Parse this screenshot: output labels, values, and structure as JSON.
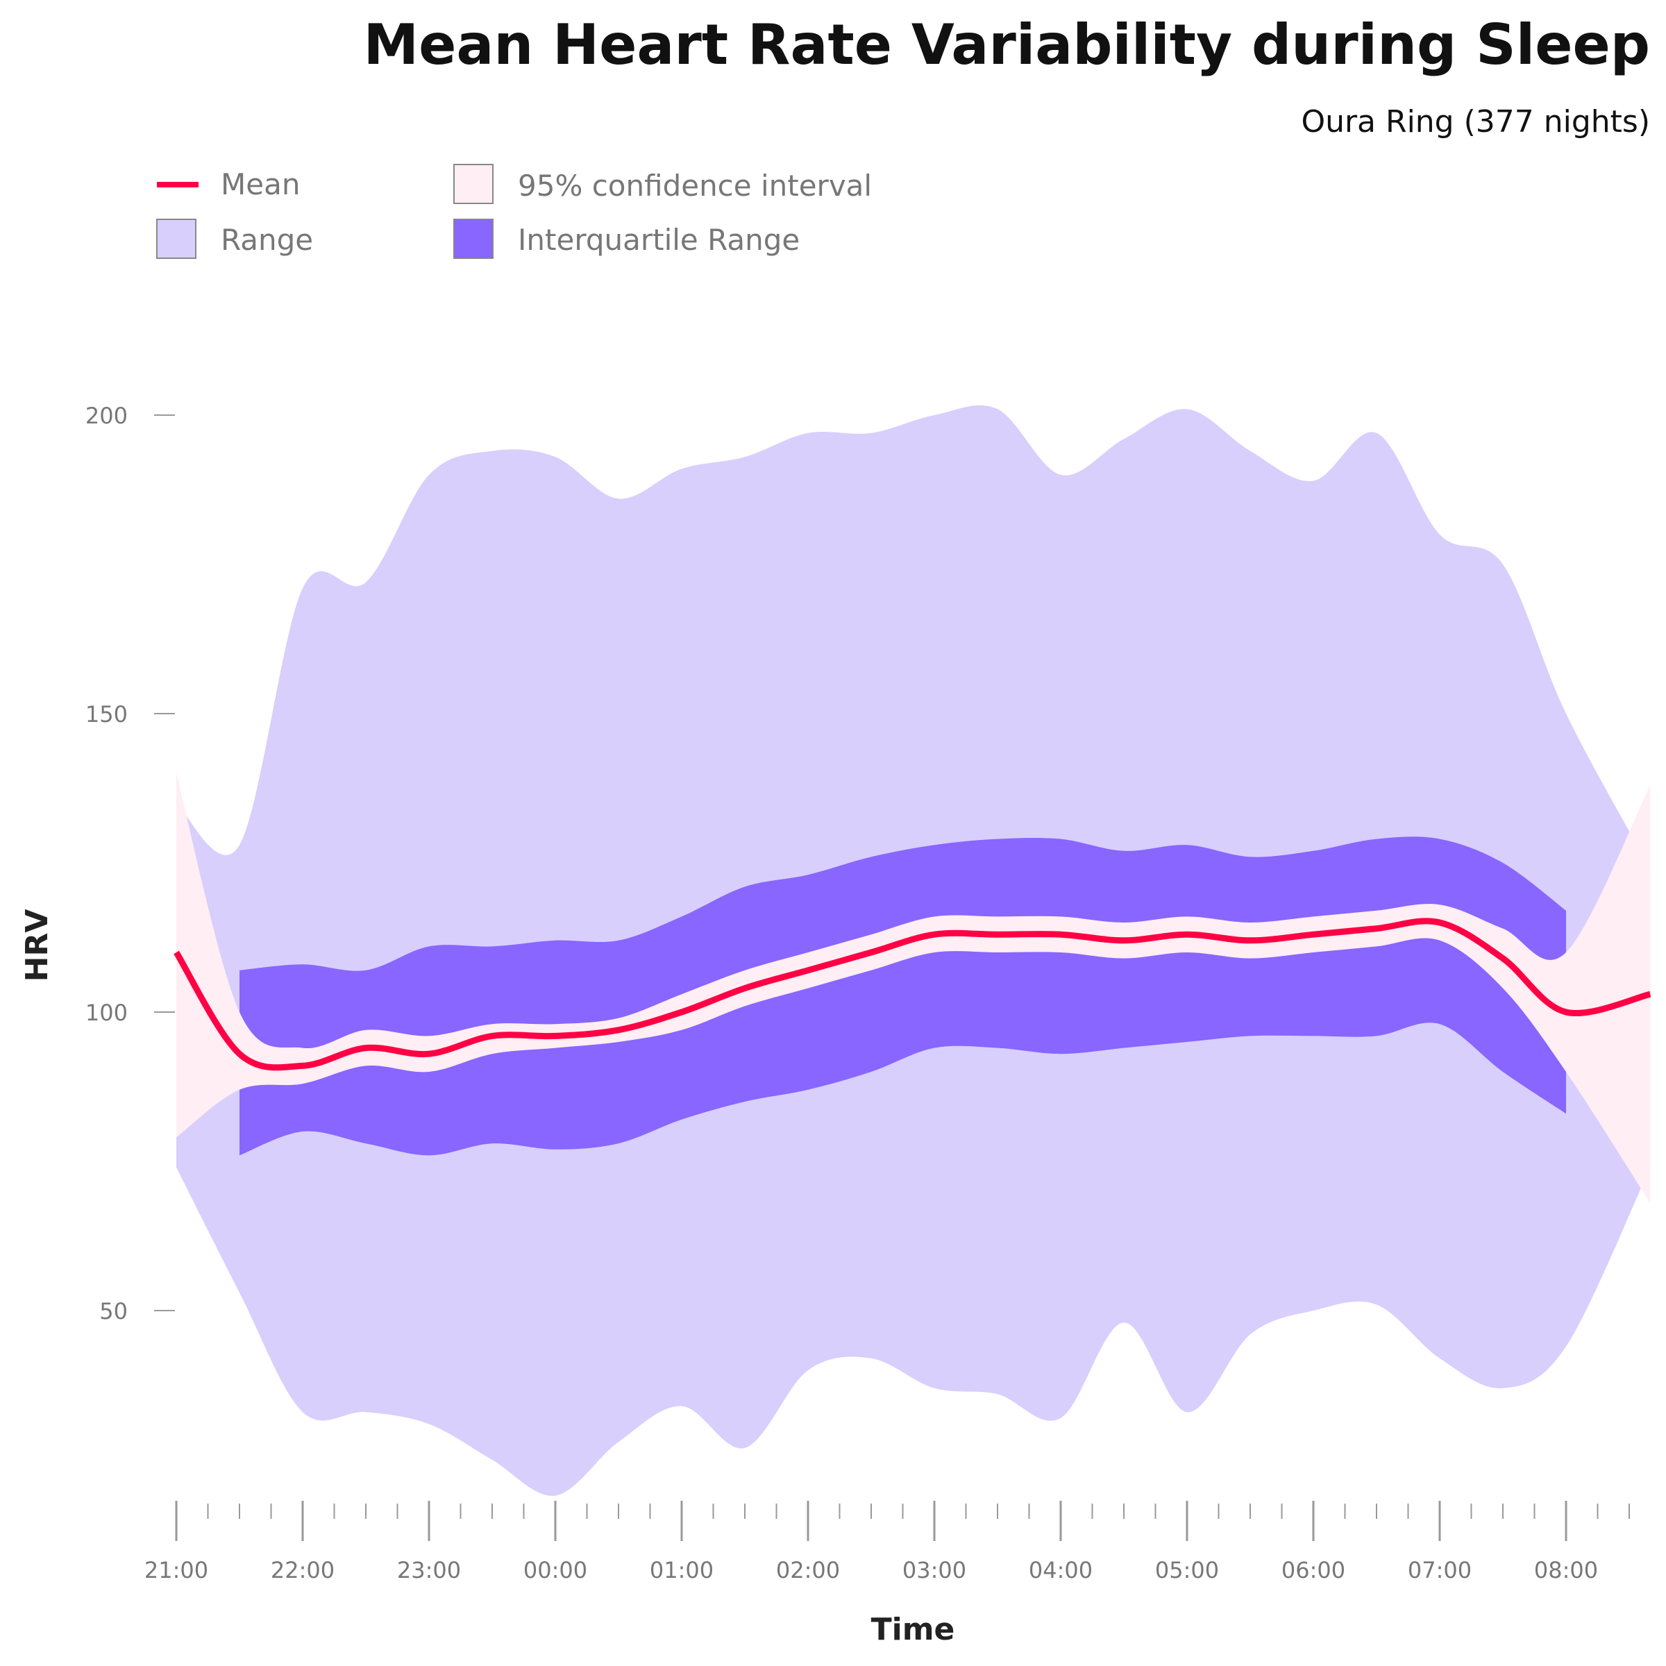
{
  "title": "Mean Heart Rate Variability during Sleep",
  "subtitle": "Oura Ring (377 nights)",
  "legend": [
    {
      "label": "Mean",
      "kind": "line",
      "color": "#ff0044"
    },
    {
      "label": "95% confidence interval",
      "kind": "box",
      "color": "#ffeef3"
    },
    {
      "label": "Range",
      "kind": "box",
      "color": "#d8cffd"
    },
    {
      "label": "Interquartile Range",
      "kind": "box",
      "color": "#8866ff"
    }
  ],
  "chart_data": {
    "type": "area",
    "title": "Mean Heart Rate Variability during Sleep",
    "subtitle": "Oura Ring (377 nights)",
    "xlabel": "Time",
    "ylabel": "HRV",
    "ylim": [
      20,
      202
    ],
    "yticks": [
      50,
      100,
      150,
      200
    ],
    "xticks": [
      "21:00",
      "22:00",
      "23:00",
      "00:00",
      "01:00",
      "02:00",
      "03:00",
      "04:00",
      "05:00",
      "06:00",
      "07:00",
      "08:00"
    ],
    "grid": false,
    "legend_position": "top-left",
    "x": [
      "21:00",
      "21:30",
      "22:00",
      "22:30",
      "23:00",
      "23:30",
      "00:00",
      "00:30",
      "01:00",
      "01:30",
      "02:00",
      "02:30",
      "03:00",
      "03:30",
      "04:00",
      "04:30",
      "05:00",
      "05:30",
      "06:00",
      "06:30",
      "07:00",
      "07:30",
      "08:00",
      "08:40"
    ],
    "series": [
      {
        "name": "Mean",
        "values": [
          110,
          93,
          91,
          94,
          93,
          96,
          96,
          97,
          100,
          104,
          107,
          110,
          113,
          113,
          113,
          112,
          113,
          112,
          113,
          114,
          115,
          109,
          100,
          103
        ]
      },
      {
        "name": "95% confidence interval",
        "lower": [
          79,
          87,
          88,
          91,
          90,
          93,
          94,
          95,
          97,
          101,
          104,
          107,
          110,
          110,
          110,
          109,
          110,
          109,
          110,
          111,
          112,
          104,
          90,
          68
        ],
        "upper": [
          140,
          100,
          94,
          97,
          96,
          98,
          98,
          99,
          103,
          107,
          110,
          113,
          116,
          116,
          116,
          115,
          116,
          115,
          116,
          117,
          118,
          114,
          110,
          138
        ]
      },
      {
        "name": "Interquartile Range",
        "lower": [
          null,
          76,
          80,
          78,
          76,
          78,
          77,
          78,
          82,
          85,
          87,
          90,
          94,
          94,
          93,
          94,
          95,
          96,
          96,
          96,
          98,
          90,
          83,
          null
        ],
        "upper": [
          null,
          107,
          108,
          107,
          111,
          111,
          112,
          112,
          116,
          121,
          123,
          126,
          128,
          129,
          129,
          127,
          128,
          126,
          127,
          129,
          129,
          125,
          117,
          null
        ]
      },
      {
        "name": "Range",
        "lower": [
          74,
          53,
          33,
          33,
          31,
          25,
          19,
          28,
          34,
          27,
          40,
          42,
          37,
          36,
          32,
          48,
          33,
          46,
          50,
          51,
          42,
          37,
          44,
          74
        ],
        "upper": [
          135,
          128,
          171,
          172,
          190,
          194,
          193,
          186,
          191,
          193,
          197,
          197,
          200,
          201,
          190,
          196,
          201,
          194,
          189,
          197,
          180,
          175,
          150,
          124
        ]
      }
    ]
  }
}
